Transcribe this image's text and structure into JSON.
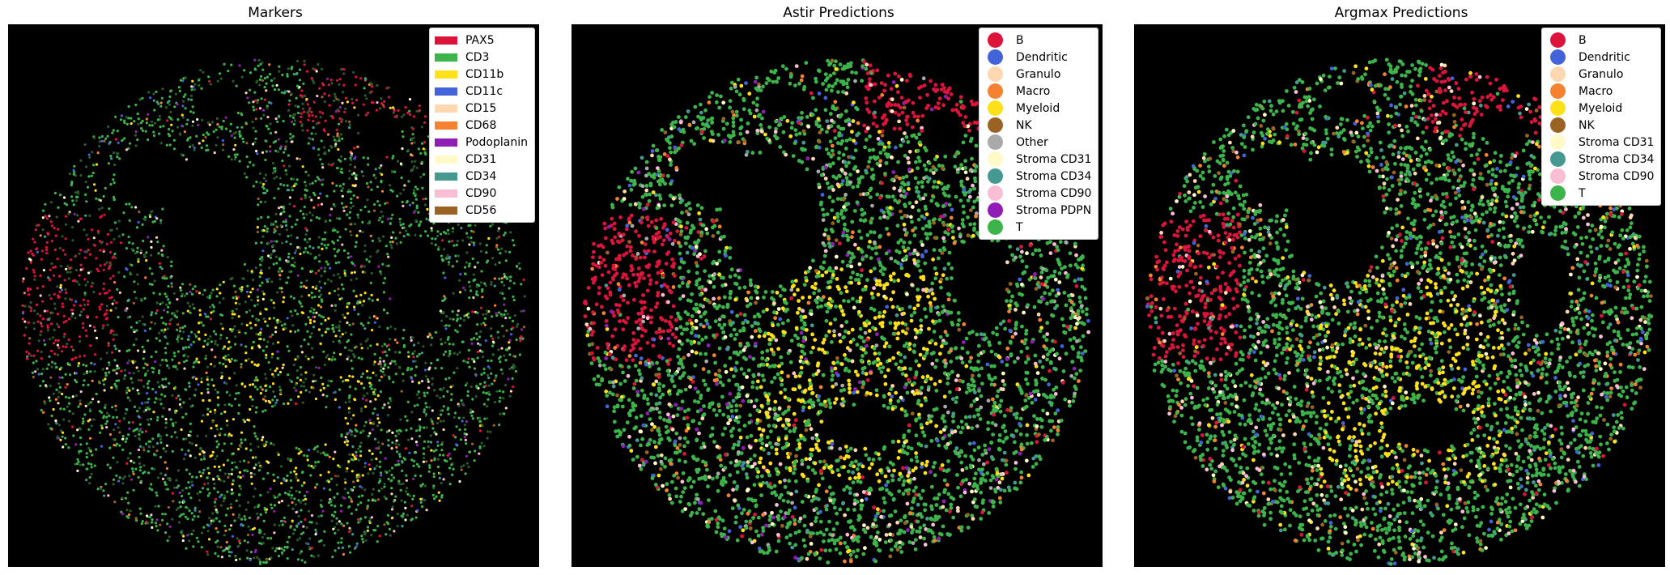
{
  "panels": [
    {
      "title": "Markers",
      "legend_style": "rect",
      "legend": [
        {
          "label": "PAX5",
          "color": "#dc143c"
        },
        {
          "label": "CD3",
          "color": "#3cb44b"
        },
        {
          "label": "CD11b",
          "color": "#ffe119"
        },
        {
          "label": "CD11c",
          "color": "#4363d8"
        },
        {
          "label": "CD15",
          "color": "#ffd8b1"
        },
        {
          "label": "CD68",
          "color": "#f58231"
        },
        {
          "label": "Podoplanin",
          "color": "#911eb4"
        },
        {
          "label": "CD31",
          "color": "#fffac8"
        },
        {
          "label": "CD34",
          "color": "#469990"
        },
        {
          "label": "CD90",
          "color": "#fabed4"
        },
        {
          "label": "CD56",
          "color": "#9a6324"
        }
      ]
    },
    {
      "title": "Astir Predictions",
      "legend_style": "dot",
      "legend": [
        {
          "label": "B",
          "color": "#dc143c"
        },
        {
          "label": "Dendritic",
          "color": "#4363d8"
        },
        {
          "label": "Granulo",
          "color": "#ffd8b1"
        },
        {
          "label": "Macro",
          "color": "#f58231"
        },
        {
          "label": "Myeloid",
          "color": "#ffe119"
        },
        {
          "label": "NK",
          "color": "#9a6324"
        },
        {
          "label": "Other",
          "color": "#a9a9a9"
        },
        {
          "label": "Stroma CD31",
          "color": "#fffac8"
        },
        {
          "label": "Stroma CD34",
          "color": "#469990"
        },
        {
          "label": "Stroma CD90",
          "color": "#fabed4"
        },
        {
          "label": "Stroma PDPN",
          "color": "#911eb4"
        },
        {
          "label": "T",
          "color": "#3cb44b"
        }
      ]
    },
    {
      "title": "Argmax Predictions",
      "legend_style": "dot",
      "legend": [
        {
          "label": "B",
          "color": "#dc143c"
        },
        {
          "label": "Dendritic",
          "color": "#4363d8"
        },
        {
          "label": "Granulo",
          "color": "#ffd8b1"
        },
        {
          "label": "Macro",
          "color": "#f58231"
        },
        {
          "label": "Myeloid",
          "color": "#ffe119"
        },
        {
          "label": "NK",
          "color": "#9a6324"
        },
        {
          "label": "Stroma CD31",
          "color": "#fffac8"
        },
        {
          "label": "Stroma CD34",
          "color": "#469990"
        },
        {
          "label": "Stroma CD90",
          "color": "#fabed4"
        },
        {
          "label": "T",
          "color": "#3cb44b"
        }
      ]
    }
  ]
}
